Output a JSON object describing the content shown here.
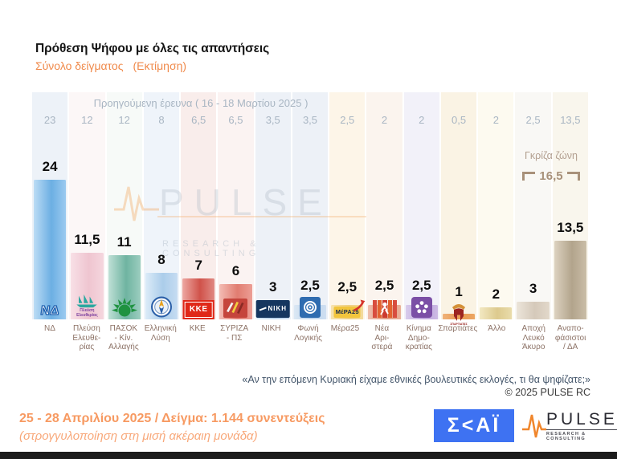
{
  "title": "Πρόθεση Ψήφου με όλες τις απαντήσεις",
  "subtitle": "Σύνολο δείγματος",
  "subtitle_note": "(Εκτίμηση)",
  "watermark": {
    "text": "PULSE",
    "sub": "RESEARCH & CONSULTING"
  },
  "question": "«Αν την επόμενη Κυριακή είχαμε εθνικές βουλευτικές εκλογές, τι θα ψηφίζατε;»",
  "copyright": "©  2025  PULSE RC",
  "footer": {
    "line1": "25 - 28 Απριλίου 2025  /  Δείγμα:  1.144 συνεντεύξεις",
    "line2": "(στρογγυλοποίηση στη μισή ακέραιη μονάδα)"
  },
  "logos": {
    "skai_text": "Σ<ΑΪ",
    "pulse_text": "PULSE",
    "pulse_sub": "RESEARCH & CONSULTING"
  },
  "colors": {
    "accent_orange": "#f08a4b",
    "footer_orange": "#f79a62",
    "previous_grey": "#a9b6c3",
    "party_label_brown": "#8c7266",
    "grey_zone_tan": "#a8917a",
    "skai_blue": "#3e72f2",
    "pulse_orange": "#f0862c",
    "black_value_label": "#0c0c0c"
  },
  "chart_data": {
    "type": "bar",
    "title": "Πρόθεση Ψήφου με όλες τις απαντήσεις",
    "subtitle": "Σύνολο δείγματος (Εκτίμηση)",
    "previous_label": "Προηγούμενη έρευνα ( 16 - 18 Μαρτίου 2025 )",
    "grey_zone_label": "Γκρίζα ζώνη",
    "grey_zone_value": "16,5",
    "grey_zone_columns": [
      "Αποχή Λευκό Άκυρο",
      "Αναποφάσιστοι / ΔΑ"
    ],
    "ylim": [
      0,
      25
    ],
    "grid": false,
    "legend_position": "none",
    "categories": [
      "ΝΔ",
      "Πλεύση Ελευθερίας",
      "ΠΑΣΟΚ - Κίν. Αλλαγής",
      "Ελληνική Λύση",
      "ΚΚΕ",
      "ΣΥΡΙΖΑ - ΠΣ",
      "ΝΙΚΗ",
      "Φωνή Λογικής",
      "Μέρα25",
      "Νέα Αριστερά",
      "Κίνημα Δημοκρατίας",
      "Σπαρτιάτες",
      "Άλλο",
      "Αποχή Λευκό Άκυρο",
      "Αναποφάσιστοι / ΔΑ"
    ],
    "series": [
      {
        "name": "Εκτίμηση 25 - 28 Απριλίου 2025",
        "values": [
          24,
          11.5,
          11,
          8,
          7,
          6,
          3,
          2.5,
          2.5,
          2.5,
          2.5,
          1,
          2,
          3,
          13.5
        ]
      },
      {
        "name": "Προηγούμενη έρευνα ( 16 - 18 Μαρτίου 2025 )",
        "values": [
          23,
          12,
          12,
          8,
          6.5,
          6.5,
          3.5,
          3.5,
          2.5,
          2,
          2,
          0.5,
          2,
          2.5,
          13.5
        ]
      }
    ],
    "parties": [
      {
        "key": "nd",
        "label_lines": [
          "ΝΔ"
        ],
        "value": 24,
        "value_display": "24",
        "prev_display": "23",
        "bg": "#edf2f8",
        "bar": [
          "#bcdcf5",
          "#6cafe3",
          "#9bcaf0"
        ],
        "logo": "nd"
      },
      {
        "key": "plefsi",
        "label_lines": [
          "Πλεύση",
          "Ελευθε-",
          "ρίας"
        ],
        "value": 11.5,
        "value_display": "11,5",
        "prev_display": "12",
        "bg": "#fcf7f7",
        "bar": [
          "#f8e0e6",
          "#efc5d0",
          "#f5d6de"
        ],
        "logo": "plefsi"
      },
      {
        "key": "pasok",
        "label_lines": [
          "ΠΑΣΟΚ",
          "- Κίν.",
          "Αλλαγής"
        ],
        "value": 11,
        "value_display": "11",
        "prev_display": "12",
        "bg": "#f7faf8",
        "bar": [
          "#bfe0d6",
          "#6fb4a1",
          "#9ccdbf"
        ],
        "logo": "pasok"
      },
      {
        "key": "ellysi",
        "label_lines": [
          "Ελληνική",
          "Λύση"
        ],
        "value": 8,
        "value_display": "8",
        "prev_display": "8",
        "bg": "#eff4fa",
        "bar": [
          "#dcebf8",
          "#abcdea",
          "#c6dcf2"
        ],
        "logo": "ellysi"
      },
      {
        "key": "kke",
        "label_lines": [
          "ΚΚΕ"
        ],
        "value": 7,
        "value_display": "7",
        "prev_display": "6,5",
        "bg": "#f9edeb",
        "bar": [
          "#eda8a2",
          "#d0524a",
          "#e08a84"
        ],
        "logo": "kke"
      },
      {
        "key": "syriza",
        "label_lines": [
          "ΣΥΡΙΖΑ",
          "- ΠΣ"
        ],
        "value": 6,
        "value_display": "6",
        "prev_display": "6,5",
        "bg": "#fbf3f2",
        "bar": [
          "#f3bcb4",
          "#e17d71",
          "#ec9e95"
        ],
        "logo": "syriza"
      },
      {
        "key": "niki",
        "label_lines": [
          "ΝΙΚΗ"
        ],
        "value": 3,
        "value_display": "3",
        "prev_display": "3,5",
        "bg": "#edf1f7",
        "bar": [
          "#d8e6f3",
          "#b9d2ea",
          "#cdddf0"
        ],
        "logo": "niki"
      },
      {
        "key": "foni",
        "label_lines": [
          "Φωνή",
          "Λογικής"
        ],
        "value": 2.5,
        "value_display": "2,5",
        "prev_display": "3,5",
        "bg": "#edf1f7",
        "bar": [
          "#dce8f4",
          "#bdd4ec",
          "#cfdff1"
        ],
        "logo": "foni"
      },
      {
        "key": "mera25",
        "label_lines": [
          "Μέρα25"
        ],
        "value": 2.5,
        "value_display": "2,5",
        "prev_display": "2,5",
        "bg": "#fdf5e8",
        "bar": [
          "#f7e3ae",
          "#efd083",
          "#f4db9c"
        ],
        "logo": "mera25"
      },
      {
        "key": "nea",
        "label_lines": [
          "Νέα",
          "Αρι-",
          "στερά"
        ],
        "value": 2.5,
        "value_display": "2,5",
        "prev_display": "2",
        "bg": "#fbf4ee",
        "bar": [
          "#eec0ae",
          "#e29a80",
          "#e9b098"
        ],
        "logo": "nea"
      },
      {
        "key": "kin",
        "label_lines": [
          "Κίνημα",
          "Δημο-",
          "κρατίας"
        ],
        "value": 2.5,
        "value_display": "2,5",
        "prev_display": "2",
        "bg": "#f2f1f9",
        "bar": [
          "#d9ccec",
          "#bda6dc",
          "#ccbae4"
        ],
        "logo": "kin"
      },
      {
        "key": "spart",
        "label_lines": [
          "Σπαρτιάτες"
        ],
        "value": 1,
        "value_display": "1",
        "prev_display": "0,5",
        "bg": "#faf3e4",
        "bar": [
          "#f0b27a",
          "#e8994e",
          "#eca665"
        ],
        "logo": "spart"
      },
      {
        "key": "allo",
        "label_lines": [
          "Άλλο"
        ],
        "value": 2,
        "value_display": "2",
        "prev_display": "2",
        "bg": "#fdfaf0",
        "bar": [
          "#f2e8c2",
          "#ddca8e",
          "#e9dcab"
        ],
        "logo": null
      },
      {
        "key": "apochi",
        "label_lines": [
          "Αποχή",
          "Λευκό",
          "Άκυρο"
        ],
        "value": 3,
        "value_display": "3",
        "prev_display": "2,5",
        "bg": "#f9f8f5",
        "bar": [
          "#ece5da",
          "#d5c9ba",
          "#e2d8ca"
        ],
        "logo": null
      },
      {
        "key": "anapof",
        "label_lines": [
          "Αναπο-",
          "φάσιστοι",
          "/ ΔΑ"
        ],
        "value": 13.5,
        "value_display": "13,5",
        "prev_display": "13,5",
        "bg": "#f9f6ed",
        "bar": [
          "#ddd2c0",
          "#b2a48c",
          "#cabda7"
        ],
        "logo": null
      }
    ]
  }
}
